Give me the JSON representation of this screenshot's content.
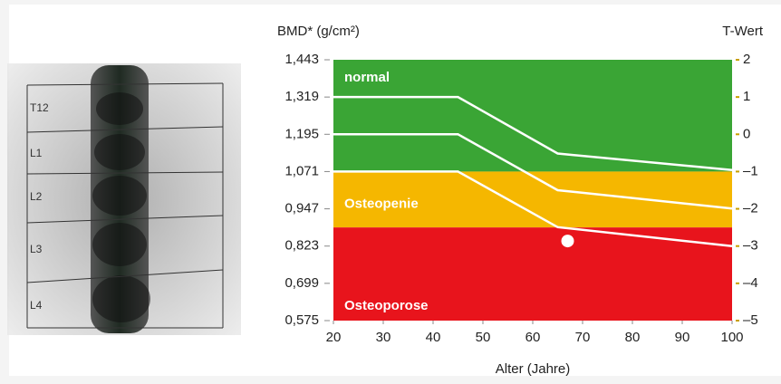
{
  "chart_data": {
    "type": "line",
    "ylabel": "BMD* (g/cm²)",
    "y2label": "T-Wert",
    "xlabel": "Alter (Jahre)",
    "ylim": [
      0.575,
      1.443
    ],
    "yticks": [
      {
        "value": 1.443,
        "label": "1,443"
      },
      {
        "value": 1.319,
        "label": "1,319"
      },
      {
        "value": 1.195,
        "label": "1,195"
      },
      {
        "value": 1.071,
        "label": "1,071"
      },
      {
        "value": 0.947,
        "label": "0,947"
      },
      {
        "value": 0.823,
        "label": "0,823"
      },
      {
        "value": 0.699,
        "label": "0,699"
      },
      {
        "value": 0.575,
        "label": "0,575"
      }
    ],
    "y2lim": [
      -5,
      2
    ],
    "y2ticks": [
      2,
      1,
      0,
      {
        "value": -1,
        "label": "–1"
      },
      {
        "value": -2,
        "label": "–2"
      },
      {
        "value": -3,
        "label": "–3"
      },
      {
        "value": -4,
        "label": "–4"
      },
      {
        "value": -5,
        "label": "–5"
      }
    ],
    "xlim": [
      20,
      100
    ],
    "xticks": [
      20,
      30,
      40,
      50,
      60,
      70,
      80,
      90,
      100
    ],
    "zones": [
      {
        "name": "normal",
        "color": "#3aa535",
        "from": 1.071,
        "to": 1.443
      },
      {
        "name": "Osteopenie",
        "color": "#f5b700",
        "from": 0.885,
        "to": 1.071
      },
      {
        "name": "Osteoporose",
        "color": "#e8141c",
        "from": 0.575,
        "to": 0.885
      }
    ],
    "x": [
      20,
      45,
      65,
      100
    ],
    "series": [
      {
        "color": "#ffffff",
        "values": [
          1.319,
          1.319,
          1.131,
          1.076
        ]
      },
      {
        "color": "#ffffff",
        "values": [
          1.195,
          1.195,
          1.009,
          0.948
        ]
      },
      {
        "color": "#ffffff",
        "values": [
          1.071,
          1.071,
          0.886,
          0.823
        ]
      }
    ],
    "points": {
      "color": "#ffffff",
      "x": [
        67
      ],
      "values": [
        0.84
      ]
    }
  },
  "scan": {
    "labels": [
      "T12",
      "L1",
      "L2",
      "L3",
      "L4"
    ]
  }
}
